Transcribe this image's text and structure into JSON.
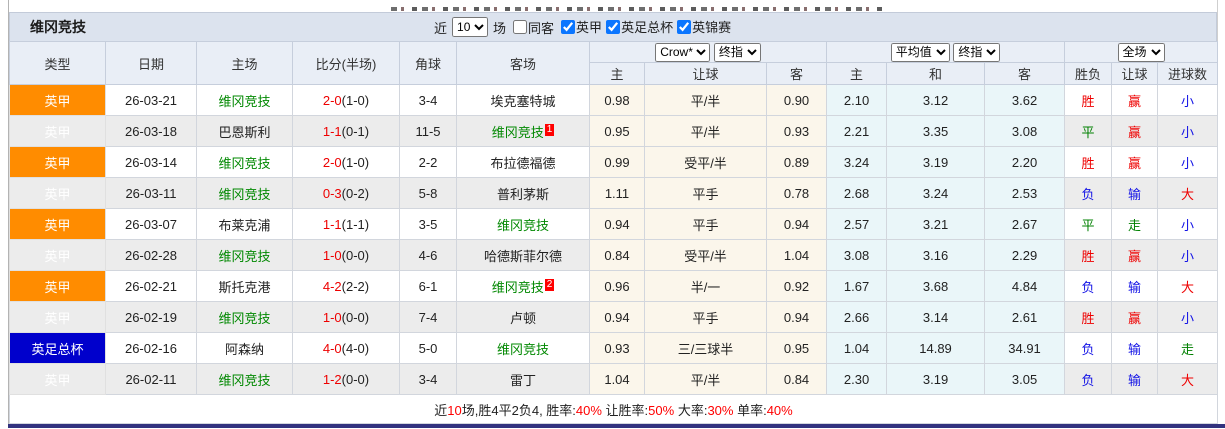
{
  "colors": {
    "league_orange": "#ff8c00",
    "league_blue": "#0000cc",
    "team_link_green": "#008800",
    "score_red": "#ee0000",
    "result_win_red": "#ee0000",
    "result_draw_green": "#008000",
    "result_lose_blue": "#1414e6",
    "checkbox_blue": "#0b76ff",
    "header_bg": "#e9eef6",
    "title_bar_bg": "#dce3ee",
    "odds_bg_cream": "#fbf6eb",
    "avg_bg_blue": "#eaf6f9",
    "bottom_rule_navy": "#32327e"
  },
  "title": "维冈竞技",
  "top_controls": {
    "near_label": "近",
    "matches_value": "10",
    "matches_suffix_label": "场",
    "same_away_label": "同客",
    "same_away_checked": false,
    "league_filters": [
      {
        "label": "英甲",
        "checked": true
      },
      {
        "label": "英足总杯",
        "checked": true
      },
      {
        "label": "英锦赛",
        "checked": true
      }
    ]
  },
  "dropdowns": {
    "odds_company": "Crow*",
    "odds_stage_left": "终指",
    "avg_mode": "平均值",
    "odds_stage_right": "终指",
    "scope": "全场"
  },
  "table": {
    "left_headers": [
      "类型",
      "日期",
      "主场",
      "比分(半场)",
      "角球",
      "客场"
    ],
    "odds_subheaders": [
      "主",
      "让球",
      "客"
    ],
    "avg_subheaders": [
      "主",
      "和",
      "客"
    ],
    "result_subheaders": [
      "胜负",
      "让球",
      "进球数"
    ],
    "rows": [
      {
        "league": "英甲",
        "league_color": "orange",
        "date": "26-03-21",
        "home": "维冈竞技",
        "home_highlight": true,
        "score": "2-0",
        "half": "(1-0)",
        "corners": "3-4",
        "away": "埃克塞特城",
        "away_highlight": false,
        "away_badge": "",
        "odds": [
          "0.98",
          "平/半",
          "0.90"
        ],
        "avg": [
          "2.10",
          "3.12",
          "3.62"
        ],
        "results": [
          [
            "胜",
            "red"
          ],
          [
            "赢",
            "red"
          ],
          [
            "小",
            "blue"
          ]
        ]
      },
      {
        "league": "英甲",
        "league_color": "orange",
        "date": "26-03-18",
        "home": "巴恩斯利",
        "home_highlight": false,
        "score": "1-1",
        "half": "(0-1)",
        "corners": "11-5",
        "away": "维冈竞技",
        "away_highlight": true,
        "away_badge": "1",
        "odds": [
          "0.95",
          "平/半",
          "0.93"
        ],
        "avg": [
          "2.21",
          "3.35",
          "3.08"
        ],
        "results": [
          [
            "平",
            "green"
          ],
          [
            "赢",
            "red"
          ],
          [
            "小",
            "blue"
          ]
        ]
      },
      {
        "league": "英甲",
        "league_color": "orange",
        "date": "26-03-14",
        "home": "维冈竞技",
        "home_highlight": true,
        "score": "2-0",
        "half": "(1-0)",
        "corners": "2-2",
        "away": "布拉德福德",
        "away_highlight": false,
        "away_badge": "",
        "odds": [
          "0.99",
          "受平/半",
          "0.89"
        ],
        "avg": [
          "3.24",
          "3.19",
          "2.20"
        ],
        "results": [
          [
            "胜",
            "red"
          ],
          [
            "赢",
            "red"
          ],
          [
            "小",
            "blue"
          ]
        ]
      },
      {
        "league": "英甲",
        "league_color": "orange",
        "date": "26-03-11",
        "home": "维冈竞技",
        "home_highlight": true,
        "score": "0-3",
        "half": "(0-2)",
        "corners": "5-8",
        "away": "普利茅斯",
        "away_highlight": false,
        "away_badge": "",
        "odds": [
          "1.11",
          "平手",
          "0.78"
        ],
        "avg": [
          "2.68",
          "3.24",
          "2.53"
        ],
        "results": [
          [
            "负",
            "blue"
          ],
          [
            "输",
            "blue"
          ],
          [
            "大",
            "red"
          ]
        ]
      },
      {
        "league": "英甲",
        "league_color": "orange",
        "date": "26-03-07",
        "home": "布莱克浦",
        "home_highlight": false,
        "score": "1-1",
        "half": "(1-1)",
        "corners": "3-5",
        "away": "维冈竞技",
        "away_highlight": true,
        "away_badge": "",
        "odds": [
          "0.94",
          "平手",
          "0.94"
        ],
        "avg": [
          "2.57",
          "3.21",
          "2.67"
        ],
        "results": [
          [
            "平",
            "green"
          ],
          [
            "走",
            "green"
          ],
          [
            "小",
            "blue"
          ]
        ]
      },
      {
        "league": "英甲",
        "league_color": "orange",
        "date": "26-02-28",
        "home": "维冈竞技",
        "home_highlight": true,
        "score": "1-0",
        "half": "(0-0)",
        "corners": "4-6",
        "away": "哈德斯菲尔德",
        "away_highlight": false,
        "away_badge": "",
        "odds": [
          "0.84",
          "受平/半",
          "1.04"
        ],
        "avg": [
          "3.08",
          "3.16",
          "2.29"
        ],
        "results": [
          [
            "胜",
            "red"
          ],
          [
            "赢",
            "red"
          ],
          [
            "小",
            "blue"
          ]
        ]
      },
      {
        "league": "英甲",
        "league_color": "orange",
        "date": "26-02-21",
        "home": "斯托克港",
        "home_highlight": false,
        "score": "4-2",
        "half": "(2-2)",
        "corners": "6-1",
        "away": "维冈竞技",
        "away_highlight": true,
        "away_badge": "2",
        "odds": [
          "0.96",
          "半/一",
          "0.92"
        ],
        "avg": [
          "1.67",
          "3.68",
          "4.84"
        ],
        "results": [
          [
            "负",
            "blue"
          ],
          [
            "输",
            "blue"
          ],
          [
            "大",
            "red"
          ]
        ]
      },
      {
        "league": "英甲",
        "league_color": "orange",
        "date": "26-02-19",
        "home": "维冈竞技",
        "home_highlight": true,
        "score": "1-0",
        "half": "(0-0)",
        "corners": "7-4",
        "away": "卢顿",
        "away_highlight": false,
        "away_badge": "",
        "odds": [
          "0.94",
          "平手",
          "0.94"
        ],
        "avg": [
          "2.66",
          "3.14",
          "2.61"
        ],
        "results": [
          [
            "胜",
            "red"
          ],
          [
            "赢",
            "red"
          ],
          [
            "小",
            "blue"
          ]
        ]
      },
      {
        "league": "英足总杯",
        "league_color": "blue",
        "date": "26-02-16",
        "home": "阿森纳",
        "home_highlight": false,
        "score": "4-0",
        "half": "(4-0)",
        "corners": "5-0",
        "away": "维冈竞技",
        "away_highlight": true,
        "away_badge": "",
        "odds": [
          "0.93",
          "三/三球半",
          "0.95"
        ],
        "avg": [
          "1.04",
          "14.89",
          "34.91"
        ],
        "results": [
          [
            "负",
            "blue"
          ],
          [
            "输",
            "blue"
          ],
          [
            "走",
            "green"
          ]
        ]
      },
      {
        "league": "英甲",
        "league_color": "orange",
        "date": "26-02-11",
        "home": "维冈竞技",
        "home_highlight": true,
        "score": "1-2",
        "half": "(0-0)",
        "corners": "3-4",
        "away": "雷丁",
        "away_highlight": false,
        "away_badge": "",
        "odds": [
          "1.04",
          "平/半",
          "0.84"
        ],
        "avg": [
          "2.30",
          "3.19",
          "3.05"
        ],
        "results": [
          [
            "负",
            "blue"
          ],
          [
            "输",
            "blue"
          ],
          [
            "大",
            "red"
          ]
        ]
      }
    ]
  },
  "summary_segments": [
    {
      "text": "近",
      "red": false
    },
    {
      "text": "10",
      "red": true
    },
    {
      "text": "场,胜4平2负4, 胜率:",
      "red": false
    },
    {
      "text": "40%",
      "red": true
    },
    {
      "text": " 让胜率:",
      "red": false
    },
    {
      "text": "50%",
      "red": true
    },
    {
      "text": " 大率:",
      "red": false
    },
    {
      "text": "30%",
      "red": true
    },
    {
      "text": " 单率:",
      "red": false
    },
    {
      "text": "40%",
      "red": true
    }
  ]
}
